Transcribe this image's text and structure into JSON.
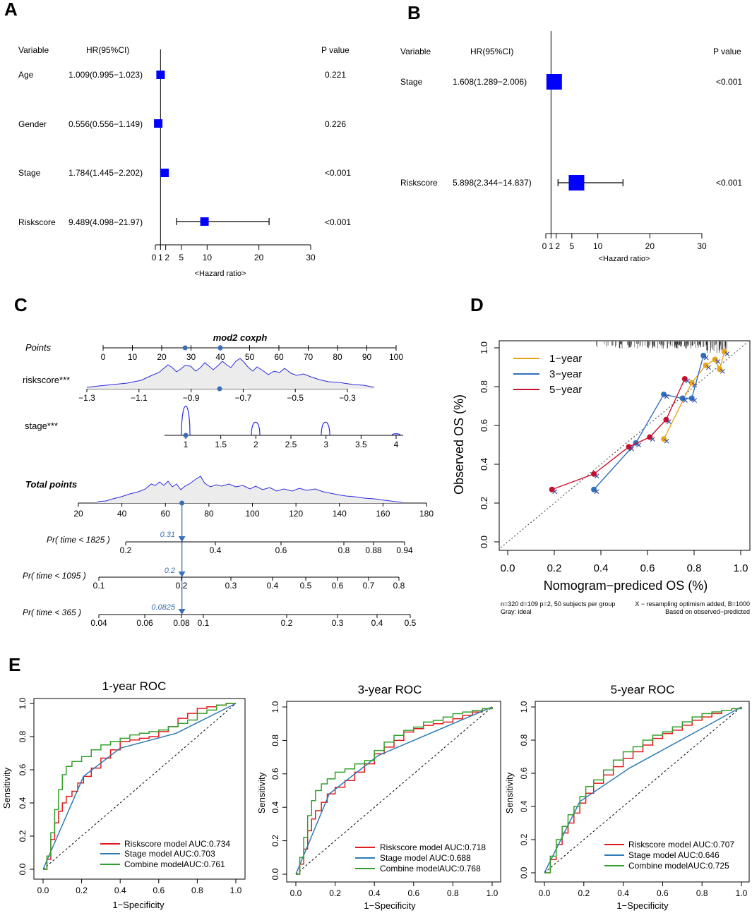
{
  "panels": {
    "A": "A",
    "B": "B",
    "C": "C",
    "D": "D",
    "E": "E"
  },
  "colors": {
    "forest_box": "#0000ff",
    "nomo_blue": "#3a6fb5",
    "density_fill": "#ececec",
    "cal_1yr": "#e8a317",
    "cal_3yr": "#2f6fbf",
    "cal_5yr": "#c8102e",
    "roc_risk": "#e31a1c",
    "roc_stage": "#2c7bb6",
    "roc_combine": "#33a02c"
  },
  "chart_data": [
    {
      "id": "A",
      "type": "forest",
      "headers": {
        "variable": "Variable",
        "hr": "HR(95%CI)",
        "p": "P value"
      },
      "rows": [
        {
          "variable": "Age",
          "hr_text": "1.009(0.995−1.023)",
          "p": "0.221",
          "hr": 1.009,
          "lo": 0.995,
          "hi": 1.023
        },
        {
          "variable": "Gender",
          "hr_text": "0.556(0.556−1.149)",
          "p": "0.226",
          "hr": 0.556,
          "lo": 0.556,
          "hi": 1.149
        },
        {
          "variable": "Stage",
          "hr_text": "1.784(1.445−2.202)",
          "p": "<0.001",
          "hr": 1.784,
          "lo": 1.445,
          "hi": 2.202
        },
        {
          "variable": "Riskscore",
          "hr_text": "9.489(4.098−21.97)",
          "p": "<0.001",
          "hr": 9.489,
          "lo": 4.098,
          "hi": 21.97
        }
      ],
      "xticks": [
        "0",
        "1",
        "2",
        "5",
        "10",
        "20",
        "30"
      ],
      "xtick_values": [
        0,
        1,
        2,
        5,
        10,
        20,
        30
      ],
      "xlim": [
        0,
        30
      ],
      "xlabel": "<Hazard ratio>"
    },
    {
      "id": "B",
      "type": "forest",
      "headers": {
        "variable": "Variable",
        "hr": "HR(95%CI)",
        "p": "P value"
      },
      "rows": [
        {
          "variable": "Stage",
          "hr_text": "1.608(1.289−2.006)",
          "p": "<0.001",
          "hr": 1.608,
          "lo": 1.289,
          "hi": 2.006
        },
        {
          "variable": "Riskscore",
          "hr_text": "5.898(2.344−14.837)",
          "p": "<0.001",
          "hr": 5.898,
          "lo": 2.344,
          "hi": 14.837
        }
      ],
      "xticks": [
        "0",
        "1",
        "2",
        "5",
        "10",
        "20",
        "30"
      ],
      "xtick_values": [
        0,
        1,
        2,
        5,
        10,
        20,
        30
      ],
      "xlim": [
        0,
        30
      ],
      "xlabel": "<Hazard ratio>"
    },
    {
      "id": "C",
      "type": "nomogram",
      "title": "mod2 coxph",
      "points": {
        "label": "Points",
        "ticks": [
          "0",
          "10",
          "20",
          "30",
          "40",
          "50",
          "60",
          "70",
          "80",
          "90",
          "100"
        ],
        "selected": [
          28,
          40
        ]
      },
      "riskscore": {
        "label": "riskscore***",
        "ticks": [
          "−1.3",
          "−1.1",
          "−0.9",
          "−0.7",
          "−0.5",
          "−0.3"
        ],
        "selected_points": 40
      },
      "stage": {
        "label": "stage***",
        "ticks": [
          "1",
          "1.5",
          "2",
          "2.5",
          "3",
          "3.5",
          "4"
        ],
        "selected": 1
      },
      "total": {
        "label": "Total points",
        "ticks": [
          "20",
          "40",
          "60",
          "80",
          "100",
          "120",
          "140",
          "160",
          "180"
        ],
        "value": "67.6",
        "value_num": 67.6
      },
      "pr1825": {
        "label": "Pr( time < 1825 )",
        "ticks": [
          "0.2",
          "0.4",
          "0.6",
          "0.8",
          "0.88",
          "0.94"
        ],
        "value": "0.31"
      },
      "pr1095": {
        "label": "Pr( time < 1095 )",
        "ticks": [
          "0.1",
          "0.2",
          "0.3",
          "0.4",
          "0.5",
          "0.6",
          "0.7",
          "0.8"
        ],
        "value": "0.2"
      },
      "pr365": {
        "label": "Pr( time < 365 )",
        "ticks": [
          "0.04",
          "0.06",
          "0.08",
          "0.1",
          "0.2",
          "0.3",
          "0.4",
          "0.5"
        ],
        "value": "0.0825"
      }
    },
    {
      "id": "D",
      "type": "calibration",
      "xlabel": "Nomogram−prediced OS (%)",
      "ylabel": "Observed OS (%)",
      "xlim": [
        0,
        1
      ],
      "ylim": [
        0,
        1
      ],
      "xticks": [
        "0.0",
        "0.2",
        "0.4",
        "0.6",
        "0.8",
        "1.0"
      ],
      "yticks": [
        "0.0",
        "0.2",
        "0.4",
        "0.6",
        "0.8",
        "1.0"
      ],
      "legend": [
        "1−year",
        "3−year",
        "5−year"
      ],
      "series": [
        {
          "name": "1−year",
          "x": [
            0.67,
            0.79,
            0.85,
            0.89,
            0.91,
            0.93
          ],
          "y": [
            0.53,
            0.82,
            0.91,
            0.94,
            0.89,
            0.98
          ]
        },
        {
          "name": "3−year",
          "x": [
            0.37,
            0.55,
            0.67,
            0.75,
            0.79,
            0.84
          ],
          "y": [
            0.27,
            0.51,
            0.76,
            0.74,
            0.74,
            0.96
          ]
        },
        {
          "name": "5−year",
          "x": [
            0.19,
            0.37,
            0.52,
            0.61,
            0.68,
            0.76
          ],
          "y": [
            0.27,
            0.35,
            0.49,
            0.54,
            0.63,
            0.84
          ]
        }
      ],
      "note_left_1": "n=320 d=109 p=2, 50 subjects per group",
      "note_left_2": "Gray: ideal",
      "note_right_1": "X − resampling optimism added, B=1000",
      "note_right_2": "Based on observed−predicted"
    },
    {
      "id": "E1",
      "type": "roc",
      "title": "1-year ROC",
      "xlabel": "1−Specificity",
      "ylabel": "Sensitivity",
      "ticks": [
        "0.0",
        "0.2",
        "0.4",
        "0.6",
        "0.8",
        "1.0"
      ],
      "legend": [
        "Riskscore model AUC:0.734",
        "Stage model AUC:0.703",
        "Combine modelAUC:0.761"
      ],
      "series": [
        {
          "name": "Riskscore model",
          "auc": 0.734,
          "x": [
            0,
            0.02,
            0.04,
            0.06,
            0.08,
            0.1,
            0.12,
            0.15,
            0.18,
            0.21,
            0.25,
            0.3,
            0.35,
            0.4,
            0.45,
            0.5,
            0.55,
            0.6,
            0.65,
            0.7,
            0.75,
            0.8,
            0.85,
            0.9,
            0.95,
            1.0
          ],
          "y": [
            0,
            0.06,
            0.18,
            0.28,
            0.35,
            0.4,
            0.44,
            0.47,
            0.52,
            0.56,
            0.61,
            0.67,
            0.72,
            0.77,
            0.78,
            0.79,
            0.8,
            0.83,
            0.86,
            0.91,
            0.94,
            0.97,
            0.98,
            0.99,
            1.0,
            1.0
          ]
        },
        {
          "name": "Stage model",
          "auc": 0.703,
          "x": [
            0,
            0.21,
            0.4,
            0.69,
            1.0
          ],
          "y": [
            0,
            0.56,
            0.73,
            0.82,
            1.0
          ]
        },
        {
          "name": "Combine model",
          "auc": 0.761,
          "x": [
            0,
            0.02,
            0.04,
            0.06,
            0.08,
            0.1,
            0.12,
            0.15,
            0.2,
            0.25,
            0.3,
            0.35,
            0.4,
            0.45,
            0.5,
            0.55,
            0.6,
            0.65,
            0.7,
            0.75,
            0.8,
            0.85,
            0.9,
            0.95,
            1.0
          ],
          "y": [
            0,
            0.08,
            0.22,
            0.36,
            0.48,
            0.57,
            0.62,
            0.65,
            0.68,
            0.72,
            0.75,
            0.77,
            0.79,
            0.81,
            0.82,
            0.83,
            0.84,
            0.86,
            0.88,
            0.9,
            0.94,
            0.96,
            0.99,
            1.0,
            1.0
          ]
        }
      ]
    },
    {
      "id": "E2",
      "type": "roc",
      "title": "3-year ROC",
      "xlabel": "1−Specificity",
      "ylabel": "Sensitivity",
      "ticks": [
        "0.0",
        "0.2",
        "0.4",
        "0.6",
        "0.8",
        "1.0"
      ],
      "legend": [
        "Riskscore model AUC:0.718",
        "Stage model AUC:0.688",
        "Combine modelAUC:0.768"
      ],
      "series": [
        {
          "name": "Riskscore model",
          "auc": 0.718,
          "x": [
            0,
            0.02,
            0.04,
            0.06,
            0.08,
            0.1,
            0.13,
            0.16,
            0.2,
            0.25,
            0.3,
            0.35,
            0.4,
            0.45,
            0.5,
            0.55,
            0.6,
            0.65,
            0.7,
            0.75,
            0.8,
            0.85,
            0.9,
            0.95,
            1.0
          ],
          "y": [
            0,
            0.06,
            0.15,
            0.26,
            0.33,
            0.38,
            0.43,
            0.48,
            0.52,
            0.56,
            0.61,
            0.66,
            0.72,
            0.76,
            0.8,
            0.85,
            0.87,
            0.89,
            0.9,
            0.91,
            0.93,
            0.95,
            0.97,
            0.99,
            1.0
          ]
        },
        {
          "name": "Stage model",
          "auc": 0.688,
          "x": [
            0,
            0.17,
            0.42,
            1.0
          ],
          "y": [
            0,
            0.48,
            0.71,
            1.0
          ]
        },
        {
          "name": "Combine model",
          "auc": 0.768,
          "x": [
            0,
            0.02,
            0.04,
            0.06,
            0.08,
            0.1,
            0.13,
            0.16,
            0.2,
            0.25,
            0.3,
            0.35,
            0.4,
            0.45,
            0.5,
            0.55,
            0.6,
            0.65,
            0.7,
            0.75,
            0.8,
            0.85,
            0.9,
            0.95,
            1.0
          ],
          "y": [
            0,
            0.1,
            0.22,
            0.35,
            0.44,
            0.5,
            0.54,
            0.57,
            0.61,
            0.63,
            0.66,
            0.68,
            0.74,
            0.79,
            0.83,
            0.86,
            0.88,
            0.91,
            0.92,
            0.94,
            0.96,
            0.97,
            0.98,
            0.99,
            1.0
          ]
        }
      ]
    },
    {
      "id": "E3",
      "type": "roc",
      "title": "5-year ROC",
      "xlabel": "1−Specificity",
      "ylabel": "Sensitivity",
      "ticks": [
        "0.0",
        "0.2",
        "0.4",
        "0.6",
        "0.8",
        "1.0"
      ],
      "legend": [
        "Riskscore model AUC:0.707",
        "Stage model AUC:0.646",
        "Combine modelAUC:0.725"
      ],
      "series": [
        {
          "name": "Riskscore model",
          "auc": 0.707,
          "x": [
            0,
            0.03,
            0.06,
            0.09,
            0.12,
            0.15,
            0.18,
            0.21,
            0.25,
            0.3,
            0.35,
            0.4,
            0.45,
            0.5,
            0.55,
            0.6,
            0.65,
            0.7,
            0.75,
            0.8,
            0.85,
            0.9,
            0.95,
            1.0
          ],
          "y": [
            0,
            0.08,
            0.17,
            0.24,
            0.3,
            0.36,
            0.42,
            0.48,
            0.54,
            0.59,
            0.64,
            0.69,
            0.73,
            0.77,
            0.81,
            0.84,
            0.86,
            0.89,
            0.92,
            0.94,
            0.96,
            0.98,
            0.99,
            1.0
          ]
        },
        {
          "name": "Stage model",
          "auc": 0.646,
          "x": [
            0,
            0.18,
            0.43,
            1.0
          ],
          "y": [
            0,
            0.43,
            0.63,
            1.0
          ]
        },
        {
          "name": "Combine model",
          "auc": 0.725,
          "x": [
            0,
            0.03,
            0.06,
            0.09,
            0.12,
            0.15,
            0.18,
            0.21,
            0.25,
            0.3,
            0.35,
            0.4,
            0.45,
            0.5,
            0.55,
            0.6,
            0.65,
            0.7,
            0.75,
            0.8,
            0.85,
            0.9,
            0.95,
            1.0
          ],
          "y": [
            0,
            0.1,
            0.2,
            0.28,
            0.35,
            0.4,
            0.46,
            0.52,
            0.56,
            0.62,
            0.68,
            0.73,
            0.76,
            0.8,
            0.83,
            0.85,
            0.88,
            0.91,
            0.94,
            0.96,
            0.97,
            0.98,
            0.99,
            1.0
          ]
        }
      ]
    }
  ]
}
